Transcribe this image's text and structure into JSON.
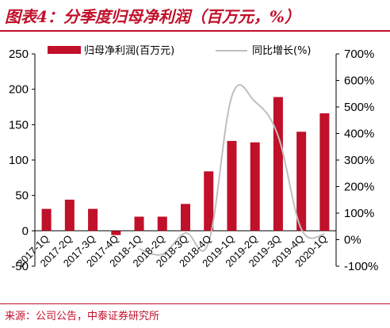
{
  "header": {
    "title": "图表4：分季度归母净利润（百万元，%）"
  },
  "footer": {
    "source": "来源：公司公告，中泰证券研究所"
  },
  "colors": {
    "bar": "#c0102a",
    "line": "#bfbfbf",
    "accent": "#c0102a"
  },
  "chart_data": {
    "type": "bar",
    "categories": [
      "2017-1Q",
      "2017-2Q",
      "2017-3Q",
      "2017-4Q",
      "2018-1Q",
      "2018-2Q",
      "2018-3Q",
      "2018-4Q",
      "2019-1Q",
      "2019-2Q",
      "2019-3Q",
      "2019-4Q",
      "2020-1Q"
    ],
    "series": [
      {
        "name": "归母净利润(百万元)",
        "type": "bar",
        "axis": "left",
        "values": [
          31,
          44,
          31,
          -6,
          20,
          20,
          38,
          84,
          127,
          125,
          189,
          140,
          166
        ]
      },
      {
        "name": "同比增长(%)",
        "type": "line",
        "axis": "right",
        "values": [
          null,
          null,
          null,
          null,
          -35,
          -55,
          25,
          -10,
          540,
          520,
          390,
          40,
          20
        ]
      }
    ],
    "y_left": {
      "lim": [
        -50,
        250
      ],
      "ticks": [
        "-50",
        "0",
        "50",
        "100",
        "150",
        "200",
        "250"
      ]
    },
    "y_right": {
      "lim": [
        -100,
        700
      ],
      "ticks": [
        "-100%",
        "0%",
        "100%",
        "200%",
        "300%",
        "400%",
        "500%",
        "600%",
        "700%"
      ]
    },
    "legend": "top",
    "grid": false
  }
}
